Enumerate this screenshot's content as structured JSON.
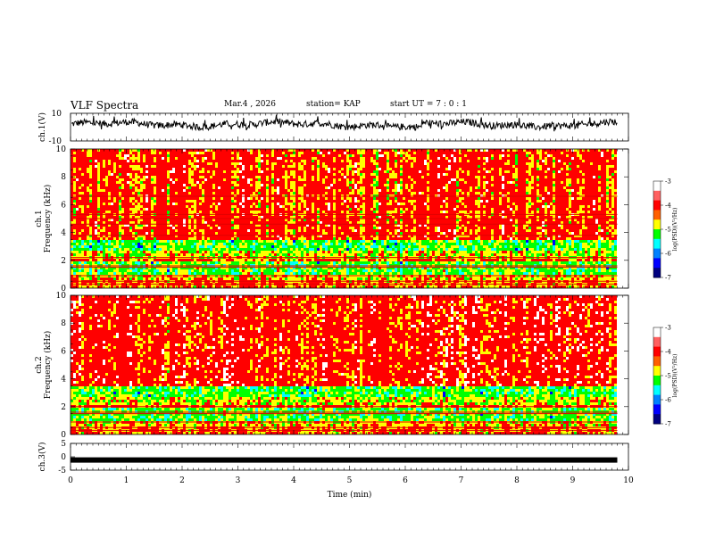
{
  "header": {
    "title": "VLF Spectra",
    "date": "Mar.4 , 2026",
    "station": "station= KAP",
    "start": "start UT =  7 : 0 : 1"
  },
  "chart_data": [
    {
      "type": "line",
      "name": "ch1-waveform",
      "ylabel": "ch.1(V)",
      "ylim": [
        -10,
        10
      ],
      "yticks": [
        "10",
        "-10"
      ],
      "description_values": "noisy waveform around mean of about 2 V, dips near 0 V at 5.7-6.2 min"
    },
    {
      "type": "heatmap",
      "name": "ch1-spectrogram",
      "ylabel_top": "ch.1",
      "ylabel": "Frequency (kHz)",
      "ylim": [
        0,
        10
      ],
      "yticks": [
        "10",
        "8",
        "6",
        "4",
        "2",
        "0"
      ],
      "colorbar": {
        "label": "log(PSD)(V²/Hz)",
        "range": [
          -7,
          -3
        ],
        "ticks": [
          "-3",
          "-4",
          "-5",
          "-6",
          "-7"
        ]
      }
    },
    {
      "type": "heatmap",
      "name": "ch2-spectrogram",
      "ylabel_top": "ch.2",
      "ylabel": "Frequency (kHz)",
      "ylim": [
        0,
        10
      ],
      "yticks": [
        "10",
        "8",
        "6",
        "4",
        "2",
        "0"
      ],
      "colorbar": {
        "label": "log(PSD)(V²/Hz)",
        "range": [
          -7,
          -3
        ],
        "ticks": [
          "-3",
          "-4",
          "-5",
          "-6",
          "-7"
        ]
      }
    },
    {
      "type": "line",
      "name": "ch3-waveform",
      "ylabel": "ch.3(V)",
      "ylim": [
        -5,
        5
      ],
      "yticks": [
        "5",
        "0",
        "-5"
      ],
      "level": -1.2
    }
  ],
  "xaxis": {
    "label": "Time (min)",
    "xlim": [
      0,
      10
    ],
    "ticks": [
      "0",
      "1",
      "2",
      "3",
      "4",
      "5",
      "6",
      "7",
      "8",
      "9",
      "10"
    ],
    "data_end": 9.8
  },
  "colors": {
    "line": "#000000",
    "cmap": [
      "#00007f",
      "#0000ff",
      "#00ffff",
      "#00ff00",
      "#ffff00",
      "#ff0000",
      "#ffffff"
    ]
  }
}
